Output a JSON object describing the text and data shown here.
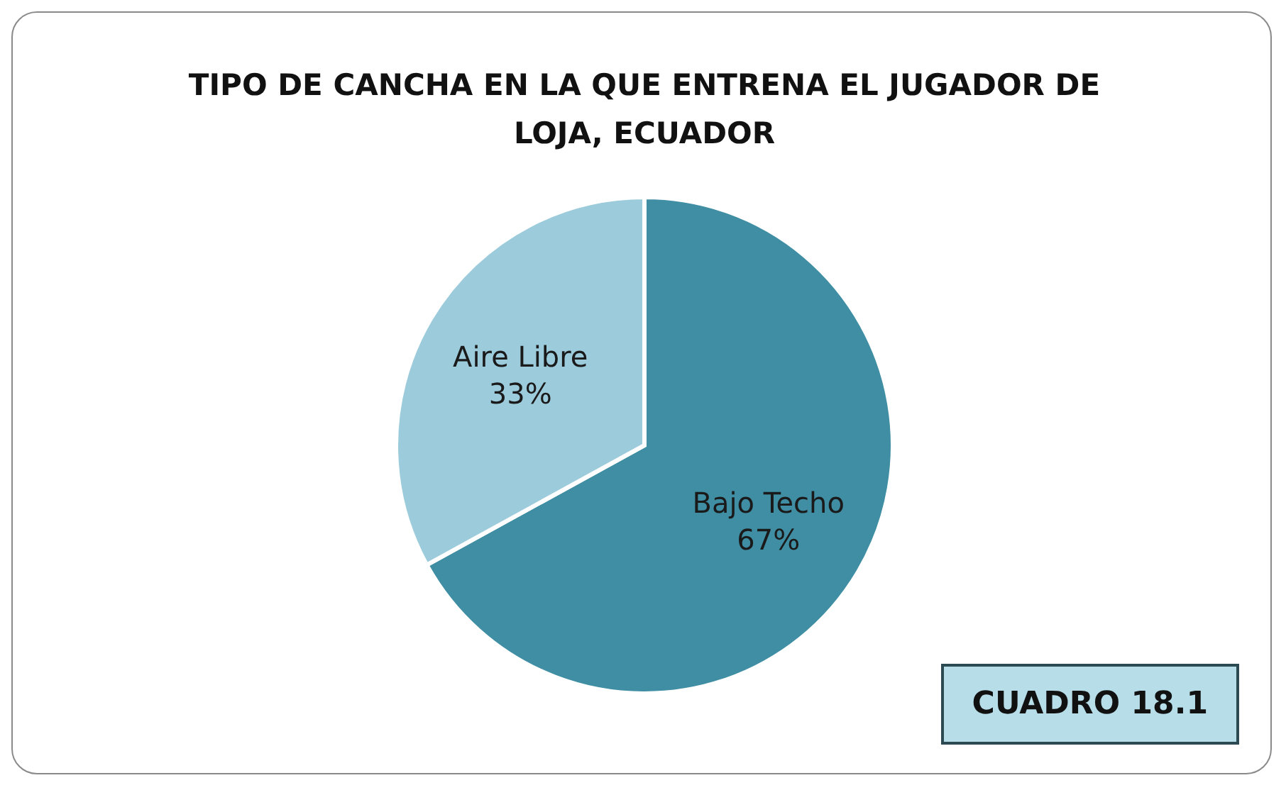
{
  "chart_data": {
    "type": "pie",
    "title": "TIPO DE CANCHA EN LA QUE ENTRENA EL JUGADOR DE LOJA, ECUADOR",
    "categories": [
      "Bajo Techo",
      "Aire Libre"
    ],
    "values": [
      67,
      33
    ],
    "value_labels": [
      "67%",
      "33%"
    ],
    "colors": [
      "#3f8ea4",
      "#9ccbdc"
    ],
    "legend": false,
    "annotations": [
      "CUADRO 18.1"
    ]
  }
}
